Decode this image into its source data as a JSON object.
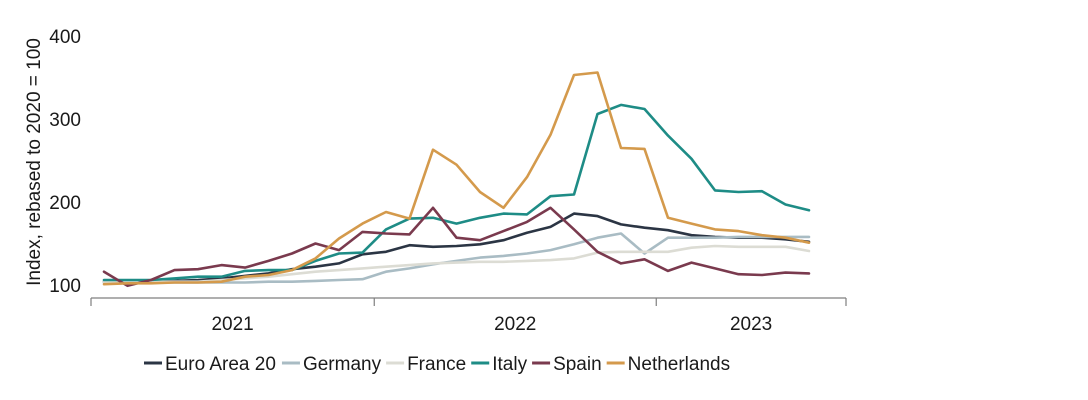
{
  "chart_data": {
    "type": "line",
    "title": "",
    "xlabel": "",
    "ylabel": "Index, rebased to 2020 = 100",
    "ylim": [
      100,
      400
    ],
    "yticks": [
      "100",
      "200",
      "300",
      "400"
    ],
    "grid": false,
    "legend_position": "bottom",
    "x_years": [
      "2021",
      "2022",
      "2023"
    ],
    "x_months": [
      "Jan 2021",
      "Feb 2021",
      "Mar 2021",
      "Apr 2021",
      "May 2021",
      "Jun 2021",
      "Jul 2021",
      "Aug 2021",
      "Sep 2021",
      "Oct 2021",
      "Nov 2021",
      "Dec 2021",
      "Jan 2022",
      "Feb 2022",
      "Mar 2022",
      "Apr 2022",
      "May 2022",
      "Jun 2022",
      "Jul 2022",
      "Aug 2022",
      "Sep 2022",
      "Oct 2022",
      "Nov 2022",
      "Dec 2022",
      "Jan 2023",
      "Feb 2023",
      "Mar 2023",
      "Apr 2023",
      "May 2023",
      "Jun 2023",
      "Jul 2023"
    ],
    "series": [
      {
        "name": "Euro Area 20",
        "color": "#2b3544",
        "values": [
          104,
          104,
          104,
          105,
          106,
          108,
          111,
          114,
          119,
          122,
          126,
          137,
          140,
          148,
          146,
          147,
          149,
          154,
          163,
          170,
          186,
          183,
          173,
          169,
          166,
          160,
          158,
          157,
          157,
          155,
          152
        ]
      },
      {
        "name": "Germany",
        "color": "#a9bcc4",
        "values": [
          103,
          103,
          103,
          103,
          103,
          103,
          103,
          104,
          104,
          105,
          106,
          107,
          116,
          120,
          125,
          129,
          133,
          135,
          138,
          142,
          149,
          157,
          162,
          138,
          157,
          157,
          157,
          158,
          158,
          158,
          158
        ]
      },
      {
        "name": "France",
        "color": "#dcdcd4",
        "values": [
          104,
          104,
          104,
          104,
          104,
          106,
          108,
          110,
          113,
          116,
          118,
          120,
          122,
          124,
          126,
          127,
          128,
          128,
          129,
          130,
          132,
          139,
          140,
          140,
          140,
          145,
          147,
          146,
          146,
          146,
          141
        ]
      },
      {
        "name": "Italy",
        "color": "#1e8c86",
        "values": [
          106,
          106,
          106,
          108,
          110,
          110,
          117,
          118,
          118,
          129,
          138,
          139,
          167,
          180,
          181,
          174,
          181,
          186,
          185,
          207,
          209,
          306,
          317,
          312,
          280,
          252,
          214,
          212,
          213,
          197,
          190
        ]
      },
      {
        "name": "Spain",
        "color": "#7a3a4e",
        "values": [
          116,
          99,
          106,
          118,
          119,
          124,
          121,
          129,
          138,
          150,
          142,
          164,
          162,
          161,
          193,
          157,
          154,
          165,
          176,
          193,
          167,
          140,
          126,
          131,
          117,
          127,
          120,
          113,
          112,
          115,
          114
        ]
      },
      {
        "name": "Netherlands",
        "color": "#d49a4c",
        "values": [
          101,
          102,
          102,
          103,
          103,
          104,
          110,
          112,
          118,
          132,
          156,
          174,
          188,
          180,
          263,
          245,
          212,
          193,
          230,
          281,
          353,
          356,
          265,
          264,
          181,
          174,
          167,
          165,
          160,
          157,
          151
        ]
      }
    ]
  }
}
